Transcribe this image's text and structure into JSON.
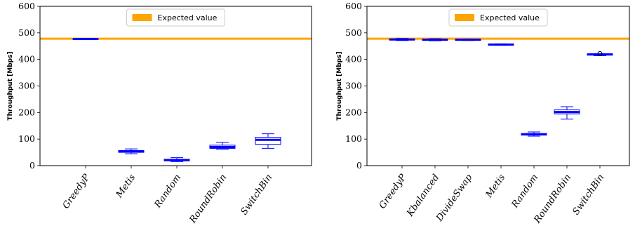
{
  "chart_data": [
    {
      "type": "box",
      "ylabel": "Throughput [Mbps]",
      "ylim": [
        0,
        600
      ],
      "yticks": [
        "0",
        "100",
        "200",
        "300",
        "400",
        "500",
        "600"
      ],
      "reference_line": {
        "label": "Expected value",
        "value": 478,
        "color": "#FFA500"
      },
      "legend_position": "top-center",
      "box_color": "#0000FF",
      "categories": [
        "GreedyP",
        "Metis",
        "Random",
        "RoundRobin",
        "SwitchBin"
      ],
      "boxes": [
        {
          "whislo": 475,
          "q1": 475,
          "med": 477,
          "q3": 478,
          "whishi": 478,
          "fliers": []
        },
        {
          "whislo": 45,
          "q1": 50,
          "med": 54,
          "q3": 57,
          "whishi": 63,
          "fliers": []
        },
        {
          "whislo": 15,
          "q1": 18,
          "med": 21,
          "q3": 24,
          "whishi": 30,
          "fliers": []
        },
        {
          "whislo": 62,
          "q1": 65,
          "med": 70,
          "q3": 77,
          "whishi": 88,
          "fliers": []
        },
        {
          "whislo": 65,
          "q1": 80,
          "med": 97,
          "q3": 107,
          "whishi": 120,
          "fliers": []
        }
      ]
    },
    {
      "type": "box",
      "ylabel": "Throughput [Mbps]",
      "ylim": [
        0,
        600
      ],
      "yticks": [
        "0",
        "100",
        "200",
        "300",
        "400",
        "500",
        "600"
      ],
      "reference_line": {
        "label": "Expected value",
        "value": 478,
        "color": "#FFA500"
      },
      "legend_position": "top-center",
      "box_color": "#0000FF",
      "categories": [
        "GreedyP",
        "Kbalanced",
        "DivideSwap",
        "Metis",
        "Random",
        "RoundRobin",
        "SwitchBin"
      ],
      "boxes": [
        {
          "whislo": 471,
          "q1": 473,
          "med": 475,
          "q3": 477,
          "whishi": 479,
          "fliers": []
        },
        {
          "whislo": 470,
          "q1": 472,
          "med": 474,
          "q3": 476,
          "whishi": 478,
          "fliers": []
        },
        {
          "whislo": 471,
          "q1": 472,
          "med": 474,
          "q3": 476,
          "whishi": 477,
          "fliers": []
        },
        {
          "whislo": 453,
          "q1": 454,
          "med": 456,
          "q3": 458,
          "whishi": 459,
          "fliers": []
        },
        {
          "whislo": 111,
          "q1": 115,
          "med": 118,
          "q3": 121,
          "whishi": 127,
          "fliers": []
        },
        {
          "whislo": 175,
          "q1": 195,
          "med": 202,
          "q3": 210,
          "whishi": 222,
          "fliers": []
        },
        {
          "whislo": 414,
          "q1": 416,
          "med": 419,
          "q3": 421,
          "whishi": 422,
          "fliers": [
            422
          ]
        }
      ]
    }
  ]
}
